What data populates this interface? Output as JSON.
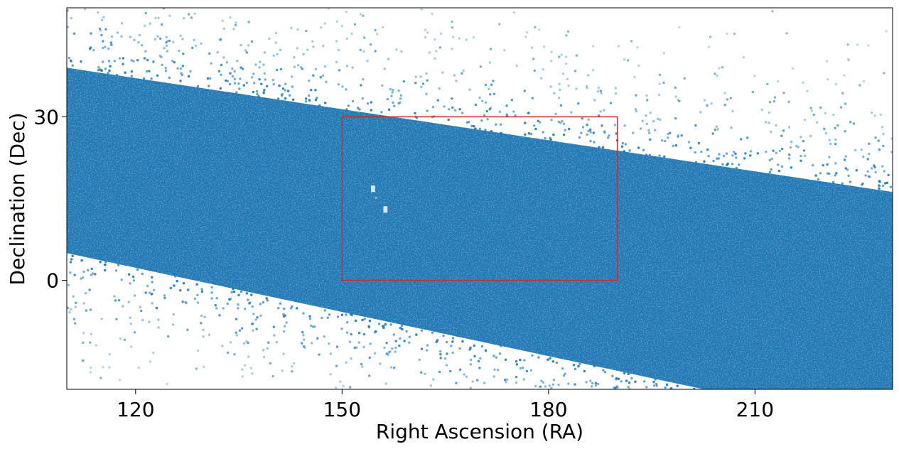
{
  "chart_data": {
    "type": "scatter",
    "title": "",
    "xlabel": "Right Ascension (RA)",
    "ylabel": "Declination (Dec)",
    "xlim": [
      110,
      230
    ],
    "ylim": [
      -20,
      50
    ],
    "xticks": [
      120,
      150,
      180,
      210
    ],
    "yticks": [
      0,
      30
    ],
    "grid": false,
    "series_color": "#1f77b4",
    "highlight_box": {
      "ra_min": 150,
      "ra_max": 190,
      "dec_min": 0,
      "dec_max": 30,
      "color": "#d62728"
    }
  }
}
